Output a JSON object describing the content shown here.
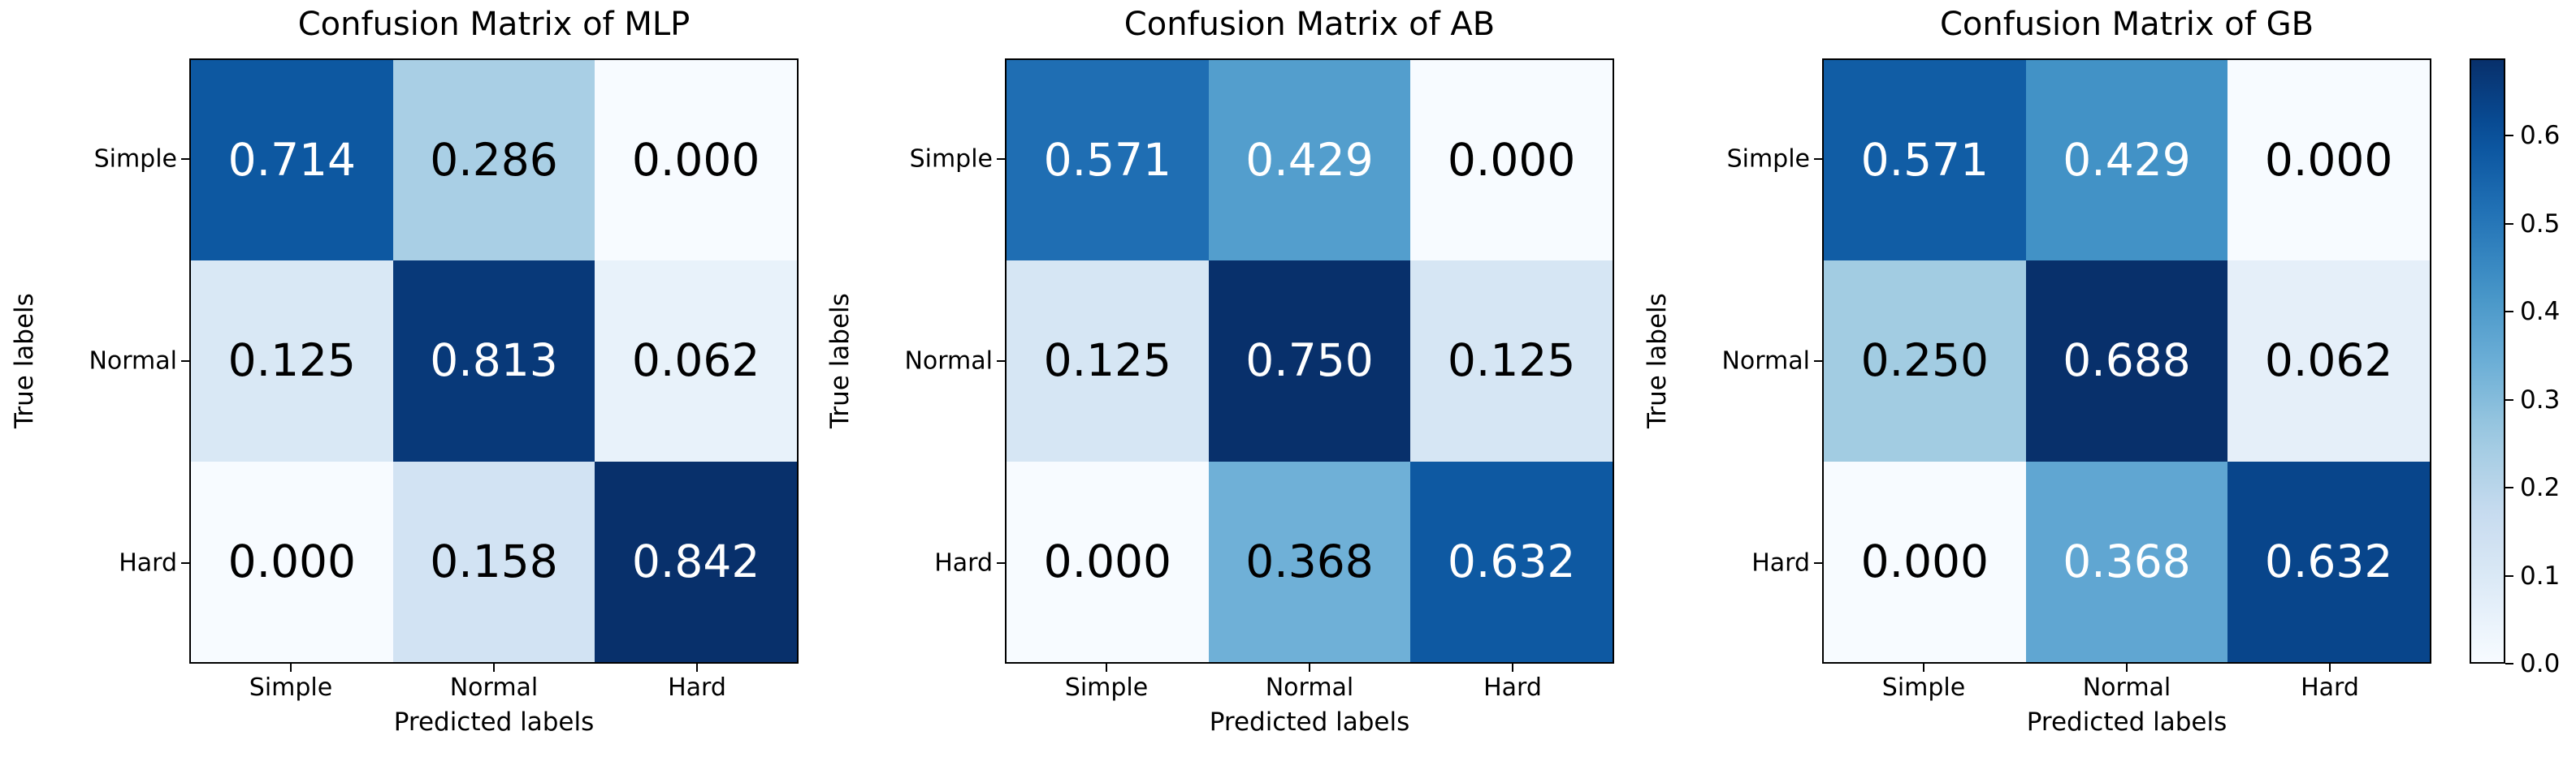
{
  "figure": {
    "colormap": "Blues",
    "colormap_anchors": [
      [
        0.0,
        "#f7fbff"
      ],
      [
        0.125,
        "#deebf7"
      ],
      [
        0.25,
        "#c6dbef"
      ],
      [
        0.375,
        "#9ecae1"
      ],
      [
        0.5,
        "#6baed6"
      ],
      [
        0.625,
        "#4292c6"
      ],
      [
        0.75,
        "#2171b5"
      ],
      [
        0.875,
        "#08519c"
      ],
      [
        1.0,
        "#08306b"
      ]
    ],
    "annotation_text_light": "#ffffff",
    "annotation_text_dark": "#000000",
    "spine_color": "#000000"
  },
  "chart_data": [
    {
      "type": "heatmap",
      "title": "Confusion Matrix of MLP",
      "xlabel": "Predicted labels",
      "ylabel": "True labels",
      "x_categories": [
        "Simple",
        "Normal",
        "Hard"
      ],
      "y_categories": [
        "Simple",
        "Normal",
        "Hard"
      ],
      "values": [
        [
          0.714,
          0.286,
          0.0
        ],
        [
          0.125,
          0.813,
          0.062
        ],
        [
          0.0,
          0.158,
          0.842
        ]
      ],
      "cell_labels": [
        [
          "0.714",
          "0.286",
          "0.000"
        ],
        [
          "0.125",
          "0.813",
          "0.062"
        ],
        [
          "0.000",
          "0.158",
          "0.842"
        ]
      ],
      "vmin": 0.0,
      "vmax": 0.842,
      "grid": false,
      "legend": false
    },
    {
      "type": "heatmap",
      "title": "Confusion Matrix of AB",
      "xlabel": "Predicted labels",
      "ylabel": "True labels",
      "x_categories": [
        "Simple",
        "Normal",
        "Hard"
      ],
      "y_categories": [
        "Simple",
        "Normal",
        "Hard"
      ],
      "values": [
        [
          0.571,
          0.429,
          0.0
        ],
        [
          0.125,
          0.75,
          0.125
        ],
        [
          0.0,
          0.368,
          0.632
        ]
      ],
      "cell_labels": [
        [
          "0.571",
          "0.429",
          "0.000"
        ],
        [
          "0.125",
          "0.750",
          "0.125"
        ],
        [
          "0.000",
          "0.368",
          "0.632"
        ]
      ],
      "vmin": 0.0,
      "vmax": 0.75,
      "grid": false,
      "legend": false
    },
    {
      "type": "heatmap",
      "title": "Confusion Matrix of GB",
      "xlabel": "Predicted labels",
      "ylabel": "True labels",
      "x_categories": [
        "Simple",
        "Normal",
        "Hard"
      ],
      "y_categories": [
        "Simple",
        "Normal",
        "Hard"
      ],
      "values": [
        [
          0.571,
          0.429,
          0.0
        ],
        [
          0.25,
          0.688,
          0.062
        ],
        [
          0.0,
          0.368,
          0.632
        ]
      ],
      "cell_labels": [
        [
          "0.571",
          "0.429",
          "0.000"
        ],
        [
          "0.250",
          "0.688",
          "0.062"
        ],
        [
          "0.000",
          "0.368",
          "0.632"
        ]
      ],
      "vmin": 0.0,
      "vmax": 0.688,
      "grid": false,
      "legend": false
    }
  ],
  "colorbar": {
    "orientation": "vertical",
    "vmin": 0.0,
    "vmax": 0.688,
    "tick_values": [
      0.0,
      0.1,
      0.2,
      0.3,
      0.4,
      0.5,
      0.6
    ],
    "tick_labels": [
      "0.0",
      "0.1",
      "0.2",
      "0.3",
      "0.4",
      "0.5",
      "0.6"
    ]
  }
}
